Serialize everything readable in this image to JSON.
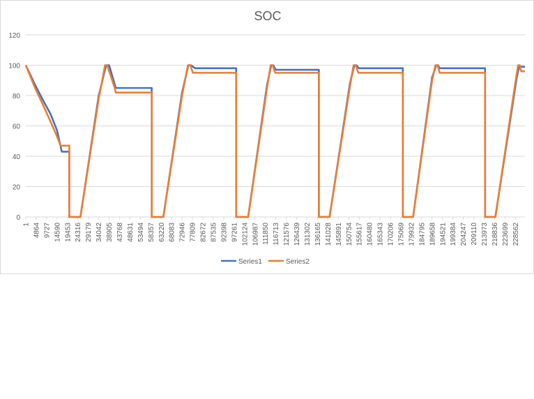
{
  "chart_data": {
    "type": "line",
    "title": "SOC",
    "xlabel": "",
    "ylabel": "",
    "ylim": [
      0,
      120
    ],
    "yticks": [
      0,
      20,
      40,
      60,
      80,
      100,
      120
    ],
    "grid": true,
    "legend": "bottom",
    "xlim": [
      1,
      233000
    ],
    "xticks": [
      "1",
      "4864",
      "9727",
      "14590",
      "19453",
      "24316",
      "29179",
      "34042",
      "38905",
      "43768",
      "48631",
      "53494",
      "58357",
      "63220",
      "68083",
      "72946",
      "77809",
      "82672",
      "87535",
      "92398",
      "97261",
      "102124",
      "106987",
      "111850",
      "116713",
      "121576",
      "126439",
      "131302",
      "136165",
      "141028",
      "145891",
      "150754",
      "155617",
      "160480",
      "165343",
      "170206",
      "175069",
      "179932",
      "184795",
      "189658",
      "194521",
      "199384",
      "204247",
      "209110",
      "213973",
      "218836",
      "223699",
      "228562"
    ],
    "series": [
      {
        "name": "Series1",
        "color": "#4472c4",
        "points": [
          [
            1,
            100
          ],
          [
            4000,
            88
          ],
          [
            8000,
            77
          ],
          [
            11500,
            68
          ],
          [
            14590,
            57
          ],
          [
            16800,
            43
          ],
          [
            20300,
            43
          ],
          [
            20300,
            0
          ],
          [
            25500,
            0
          ],
          [
            34042,
            80
          ],
          [
            37500,
            100
          ],
          [
            38905,
            100
          ],
          [
            42000,
            85
          ],
          [
            58800,
            85
          ],
          [
            58800,
            0
          ],
          [
            64200,
            0
          ],
          [
            72946,
            82
          ],
          [
            75900,
            100
          ],
          [
            77100,
            100
          ],
          [
            79000,
            98
          ],
          [
            98200,
            98
          ],
          [
            98200,
            0
          ],
          [
            103800,
            0
          ],
          [
            112600,
            87
          ],
          [
            114600,
            100
          ],
          [
            115500,
            100
          ],
          [
            116700,
            97
          ],
          [
            136800,
            97
          ],
          [
            136800,
            0
          ],
          [
            141800,
            0
          ],
          [
            151300,
            88
          ],
          [
            153400,
            100
          ],
          [
            154300,
            100
          ],
          [
            155500,
            98
          ],
          [
            176000,
            98
          ],
          [
            176000,
            0
          ],
          [
            180800,
            0
          ],
          [
            189658,
            92
          ],
          [
            191600,
            100
          ],
          [
            192400,
            100
          ],
          [
            193200,
            98
          ],
          [
            214400,
            98
          ],
          [
            214400,
            0
          ],
          [
            219200,
            0
          ],
          [
            229200,
            92
          ],
          [
            230300,
            99
          ],
          [
            233000,
            99
          ]
        ]
      },
      {
        "name": "Series2",
        "color": "#ed7d31",
        "points": [
          [
            1,
            100
          ],
          [
            4000,
            86
          ],
          [
            8000,
            74
          ],
          [
            11500,
            63
          ],
          [
            14590,
            53
          ],
          [
            16200,
            47
          ],
          [
            20300,
            47
          ],
          [
            20300,
            0
          ],
          [
            25500,
            0
          ],
          [
            34042,
            78
          ],
          [
            37000,
            100
          ],
          [
            38000,
            100
          ],
          [
            41500,
            85
          ],
          [
            42000,
            82
          ],
          [
            58800,
            82
          ],
          [
            58800,
            0
          ],
          [
            64200,
            0
          ],
          [
            72946,
            80
          ],
          [
            75700,
            100
          ],
          [
            76800,
            100
          ],
          [
            78000,
            95
          ],
          [
            98200,
            95
          ],
          [
            98200,
            0
          ],
          [
            103800,
            0
          ],
          [
            112600,
            85
          ],
          [
            114300,
            100
          ],
          [
            115200,
            100
          ],
          [
            116400,
            95
          ],
          [
            136800,
            95
          ],
          [
            136800,
            0
          ],
          [
            141800,
            0
          ],
          [
            151300,
            86
          ],
          [
            153000,
            100
          ],
          [
            154000,
            100
          ],
          [
            155200,
            95
          ],
          [
            176000,
            95
          ],
          [
            176000,
            0
          ],
          [
            180800,
            0
          ],
          [
            189658,
            90
          ],
          [
            191200,
            100
          ],
          [
            192200,
            100
          ],
          [
            193200,
            95
          ],
          [
            214400,
            95
          ],
          [
            214400,
            0
          ],
          [
            219200,
            0
          ],
          [
            228900,
            92
          ],
          [
            229800,
            100
          ],
          [
            230600,
            100
          ],
          [
            231200,
            96
          ],
          [
            233000,
            96
          ]
        ]
      }
    ]
  }
}
